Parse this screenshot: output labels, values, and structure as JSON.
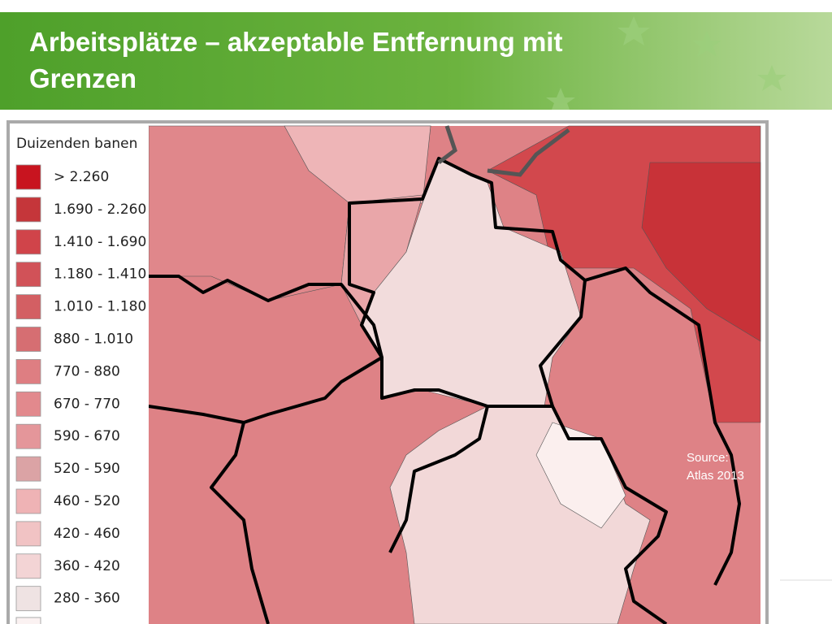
{
  "header": {
    "title_lines": [
      "Arbeitsplätze – akzeptable Entfernung mit",
      "Grenzen"
    ]
  },
  "legend": {
    "title": "Duizenden banen",
    "items": [
      {
        "label": "> 2.260",
        "color": "#c8141f"
      },
      {
        "label": "1.690 - 2.260",
        "color": "#c5363a"
      },
      {
        "label": "1.410 - 1.690",
        "color": "#d0444a"
      },
      {
        "label": "1.180 - 1.410",
        "color": "#d15258"
      },
      {
        "label": "1.010 - 1.180",
        "color": "#d35f63"
      },
      {
        "label": "880 - 1.010",
        "color": "#d66e72"
      },
      {
        "label": "770 - 880",
        "color": "#de7e82"
      },
      {
        "label": "670 - 770",
        "color": "#e2898d"
      },
      {
        "label": "590 - 670",
        "color": "#e4969a"
      },
      {
        "label": "520 - 590",
        "color": "#dba3a5"
      },
      {
        "label": "460 - 520",
        "color": "#efb3b5"
      },
      {
        "label": "420 - 460",
        "color": "#f1c3c4"
      },
      {
        "label": "360 - 420",
        "color": "#f3d4d5"
      },
      {
        "label": "280 - 360",
        "color": "#efe3e3"
      }
    ]
  },
  "source_lines": [
    "Source:",
    "Atlas 2013"
  ]
}
